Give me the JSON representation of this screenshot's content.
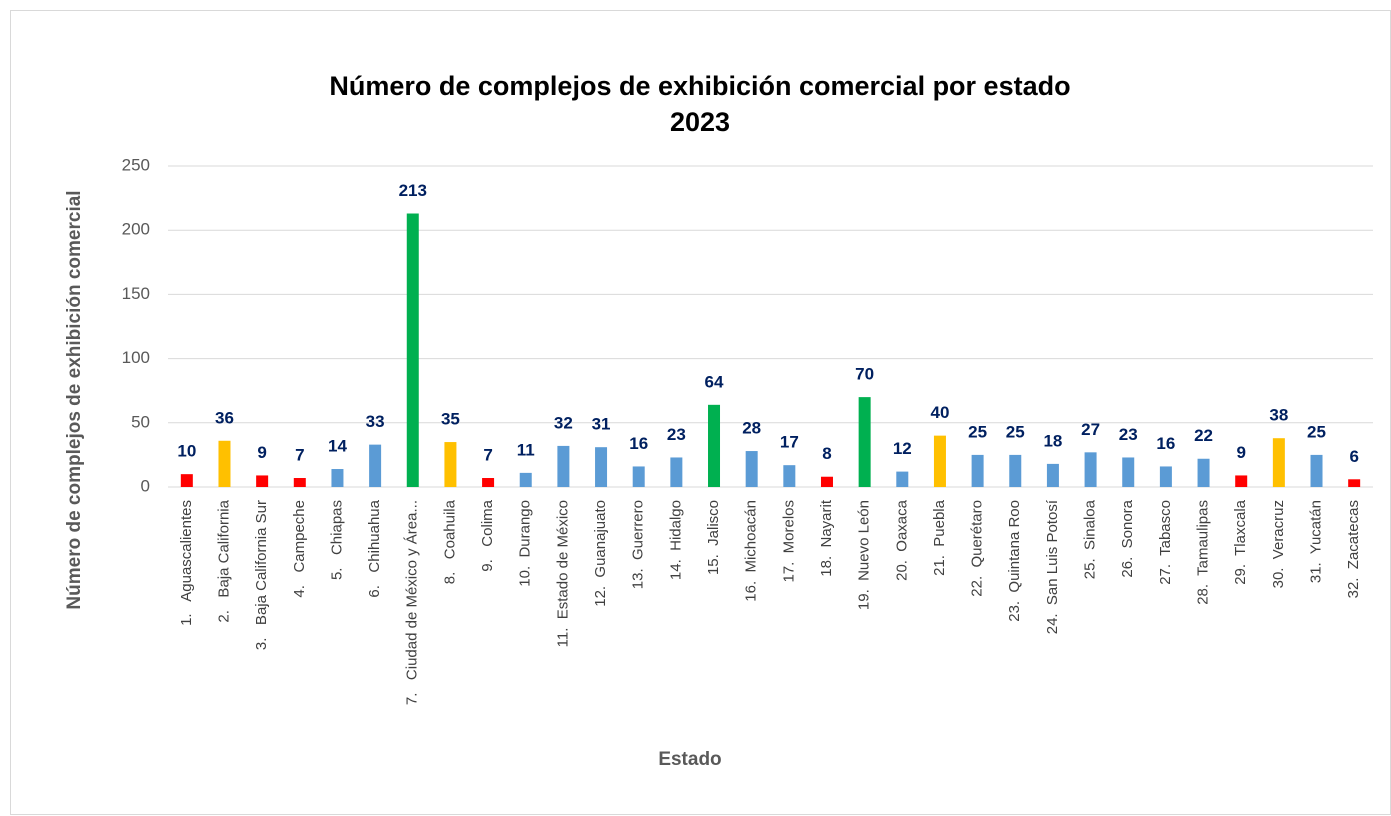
{
  "chart_data": {
    "type": "bar",
    "title": "Número de complejos de exhibición comercial por estado",
    "subtitle": "2023",
    "y_label": "Número de complejos de exhibición comercial",
    "x_label": "Estado",
    "categories": [
      "1.   Aguascalientes",
      "2.   Baja California",
      "3.   Baja California Sur",
      "4.   Campeche",
      "5.   Chiapas",
      "6.   Chihuahua",
      "7.   Ciudad de México y Área...",
      "8.   Coahuila",
      "9.   Colima",
      "10.  Durango",
      "11.  Estado de México",
      "12.  Guanajuato",
      "13.  Guerrero",
      "14.  Hidalgo",
      "15.  Jalisco",
      "16.  Michoacán",
      "17.  Morelos",
      "18.  Nayarit",
      "19.  Nuevo León",
      "20.  Oaxaca",
      "21.  Puebla",
      "22.  Querétaro",
      "23.  Quintana Roo",
      "24.  San Luis Potosí",
      "25.  Sinaloa",
      "26.  Sonora",
      "27.  Tabasco",
      "28.  Tamaulipas",
      "29.  Tlaxcala",
      "30.  Veracruz",
      "31.  Yucatán",
      "32.  Zacatecas"
    ],
    "values": [
      10,
      36,
      9,
      7,
      14,
      33,
      213,
      35,
      7,
      11,
      32,
      31,
      16,
      23,
      64,
      28,
      17,
      8,
      70,
      12,
      40,
      25,
      25,
      18,
      27,
      23,
      16,
      22,
      9,
      38,
      25,
      6
    ],
    "colors": [
      "#ff0000",
      "#ffc000",
      "#ff0000",
      "#ff0000",
      "#5b9bd5",
      "#5b9bd5",
      "#00b050",
      "#ffc000",
      "#ff0000",
      "#5b9bd5",
      "#5b9bd5",
      "#5b9bd5",
      "#5b9bd5",
      "#5b9bd5",
      "#00b050",
      "#5b9bd5",
      "#5b9bd5",
      "#ff0000",
      "#00b050",
      "#5b9bd5",
      "#ffc000",
      "#5b9bd5",
      "#5b9bd5",
      "#5b9bd5",
      "#5b9bd5",
      "#5b9bd5",
      "#5b9bd5",
      "#5b9bd5",
      "#ff0000",
      "#ffc000",
      "#5b9bd5",
      "#ff0000"
    ],
    "ylim": [
      0,
      250
    ],
    "yticks": [
      0,
      50,
      100,
      150,
      200,
      250
    ],
    "grid": true
  }
}
